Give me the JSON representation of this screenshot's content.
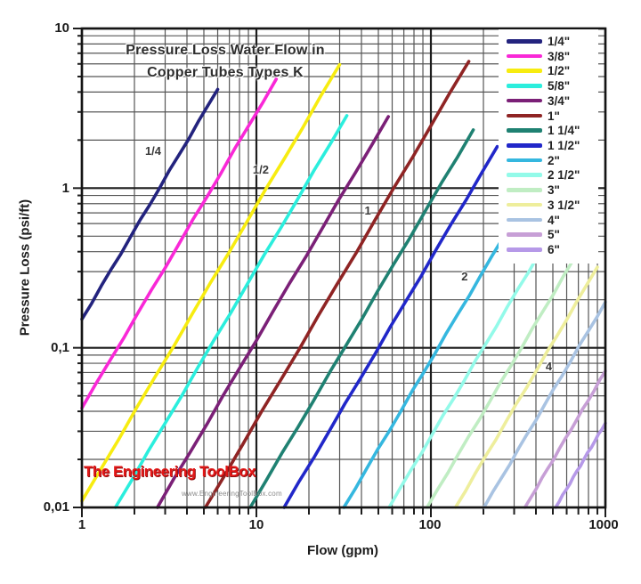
{
  "page": {
    "background": "#ffffff"
  },
  "branding": {
    "logo_text": "The Engineering ToolBox",
    "website": "www.EngineeringToolBox.com"
  },
  "chart_data": {
    "type": "line",
    "title_line1": "Pressure Loss Water Flow in",
    "title_line2": "Copper Tubes Types K",
    "xlabel": "Flow (gpm)",
    "ylabel": "Pressure Loss (psi/ft)",
    "x_scale": "log",
    "y_scale": "log",
    "xlim": [
      1,
      1000
    ],
    "ylim": [
      0.01,
      10
    ],
    "x_tick_labels": [
      "1",
      "10",
      "100",
      "1000"
    ],
    "y_tick_labels": [
      "10",
      "1",
      "0,1",
      "0,01"
    ],
    "grid": "log-log major and minor gridlines",
    "slope_exponent": 1.85,
    "legend_position": "top-right inside plot",
    "series": [
      {
        "name": "1/4\"",
        "color": "#23237e",
        "flow_gpm_at_0_1_psi_ft": 0.8,
        "flow_gpm_max": 6
      },
      {
        "name": "3/8\"",
        "color": "#f928d7",
        "flow_gpm_at_0_1_psi_ft": 1.6,
        "flow_gpm_max": 13
      },
      {
        "name": "1/2\"",
        "color": "#f7ec10",
        "flow_gpm_at_0_1_psi_ft": 3.3,
        "flow_gpm_max": 30
      },
      {
        "name": "5/8\"",
        "color": "#2beedd",
        "flow_gpm_at_0_1_psi_ft": 5.4,
        "flow_gpm_max": 33
      },
      {
        "name": "3/4\"",
        "color": "#7b2077",
        "flow_gpm_at_0_1_psi_ft": 9.4,
        "flow_gpm_max": 57
      },
      {
        "name": "1\"",
        "color": "#8f2424",
        "flow_gpm_at_0_1_psi_ft": 17.7,
        "flow_gpm_max": 165
      },
      {
        "name": "1 1/4\"",
        "color": "#1f8172",
        "flow_gpm_at_0_1_psi_ft": 32,
        "flow_gpm_max": 175
      },
      {
        "name": "1 1/2\"",
        "color": "#2127c9",
        "flow_gpm_at_0_1_psi_ft": 50,
        "flow_gpm_max": 240
      },
      {
        "name": "2\"",
        "color": "#35b7df",
        "flow_gpm_at_0_1_psi_ft": 110,
        "flow_gpm_max": 260
      },
      {
        "name": "2 1/2\"",
        "color": "#93fae9",
        "flow_gpm_at_0_1_psi_ft": 200,
        "flow_gpm_max": 420
      },
      {
        "name": "3\"",
        "color": "#c0edc3",
        "flow_gpm_at_0_1_psi_ft": 330,
        "flow_gpm_max": 660
      },
      {
        "name": "3 1/2\"",
        "color": "#eeee9c",
        "flow_gpm_at_0_1_psi_ft": 480,
        "flow_gpm_max": 900
      },
      {
        "name": "4\"",
        "color": "#a9c3e2",
        "flow_gpm_at_0_1_psi_ft": 700,
        "flow_gpm_max": 1000
      },
      {
        "name": "5\"",
        "color": "#c79fd6",
        "flow_gpm_at_0_1_psi_ft": 1200,
        "flow_gpm_max": 1000
      },
      {
        "name": "6\"",
        "color": "#b699e8",
        "flow_gpm_at_0_1_psi_ft": 1800,
        "flow_gpm_max": 1000
      }
    ],
    "annotations": [
      {
        "label": "1/4",
        "flow_gpm": 2.56,
        "psi_per_ft": 1.67
      },
      {
        "label": "1/2",
        "flow_gpm": 10.6,
        "psi_per_ft": 1.28
      },
      {
        "label": "1",
        "flow_gpm": 43.5,
        "psi_per_ft": 0.71
      },
      {
        "label": "2",
        "flow_gpm": 156,
        "psi_per_ft": 0.275
      },
      {
        "label": "4",
        "flow_gpm": 474,
        "psi_per_ft": 0.075
      }
    ]
  }
}
